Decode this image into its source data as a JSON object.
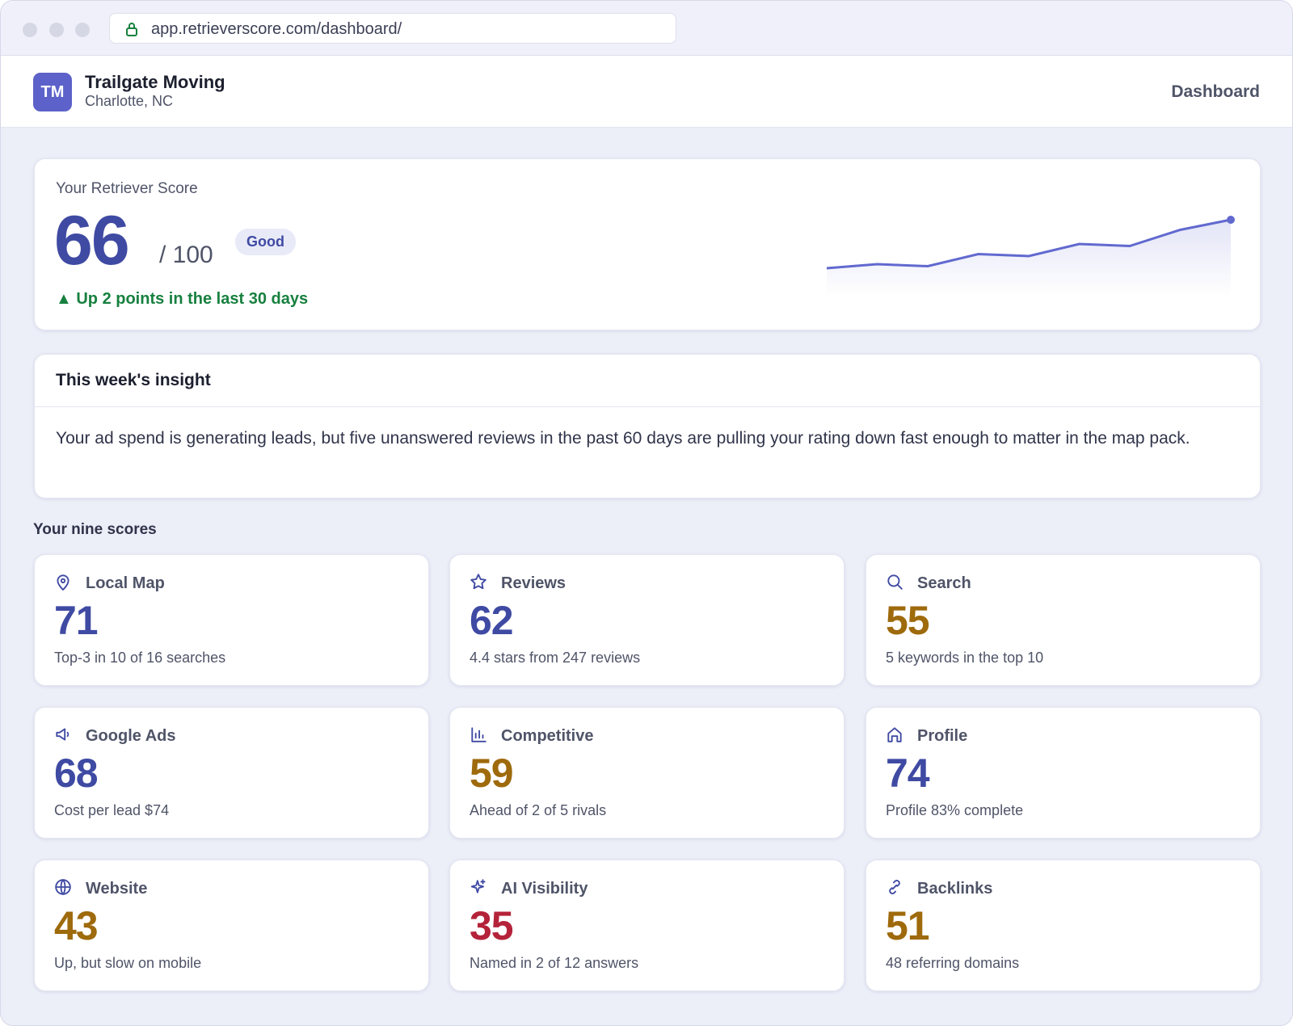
{
  "browser": {
    "url": "app.retrieverscore.com/dashboard/"
  },
  "header": {
    "logo": "TM",
    "business": "Trailgate Moving",
    "location": "Charlotte, NC",
    "nav": "Dashboard"
  },
  "score": {
    "label": "Your Retriever Score",
    "value": 66,
    "out_of": "/ 100",
    "badge": "Good",
    "change": "▲ Up 2 points in the last 30 days",
    "trend": [
      54,
      55,
      54.5,
      57.5,
      57,
      60,
      59.5,
      63.5,
      66
    ],
    "trend_color": "#6169cf"
  },
  "insight": {
    "title": "This week's insight",
    "text": "Your ad spend is generating leads, but five unanswered reviews in the past 60 days are pulling your rating down fast enough to matter in the map pack."
  },
  "scores_title": "Your nine scores",
  "scores": [
    {
      "name": "Local Map",
      "value": 71,
      "detail": "Top-3 in 10 of 16 searches",
      "color": "#3f4aa3"
    },
    {
      "name": "Reviews",
      "value": 62,
      "detail": "4.4 stars from 247 reviews",
      "color": "#3f4aa3"
    },
    {
      "name": "Search",
      "value": 55,
      "detail": "5 keywords in the top 10",
      "color": "#9e6a0c"
    },
    {
      "name": "Google Ads",
      "value": 68,
      "detail": "Cost per lead $74",
      "color": "#3f4aa3"
    },
    {
      "name": "Competitive",
      "value": 59,
      "detail": "Ahead of 2 of 5 rivals",
      "color": "#9e6a0c"
    },
    {
      "name": "Profile",
      "value": 74,
      "detail": "Profile 83% complete",
      "color": "#3f4aa3"
    },
    {
      "name": "Website",
      "value": 43,
      "detail": "Up, but slow on mobile",
      "color": "#9e6a0c"
    },
    {
      "name": "AI Visibility",
      "value": 35,
      "detail": "Named in 2 of 12 answers",
      "color": "#b4233a"
    },
    {
      "name": "Backlinks",
      "value": 51,
      "detail": "48 referring domains",
      "color": "#9e6a0c"
    }
  ]
}
